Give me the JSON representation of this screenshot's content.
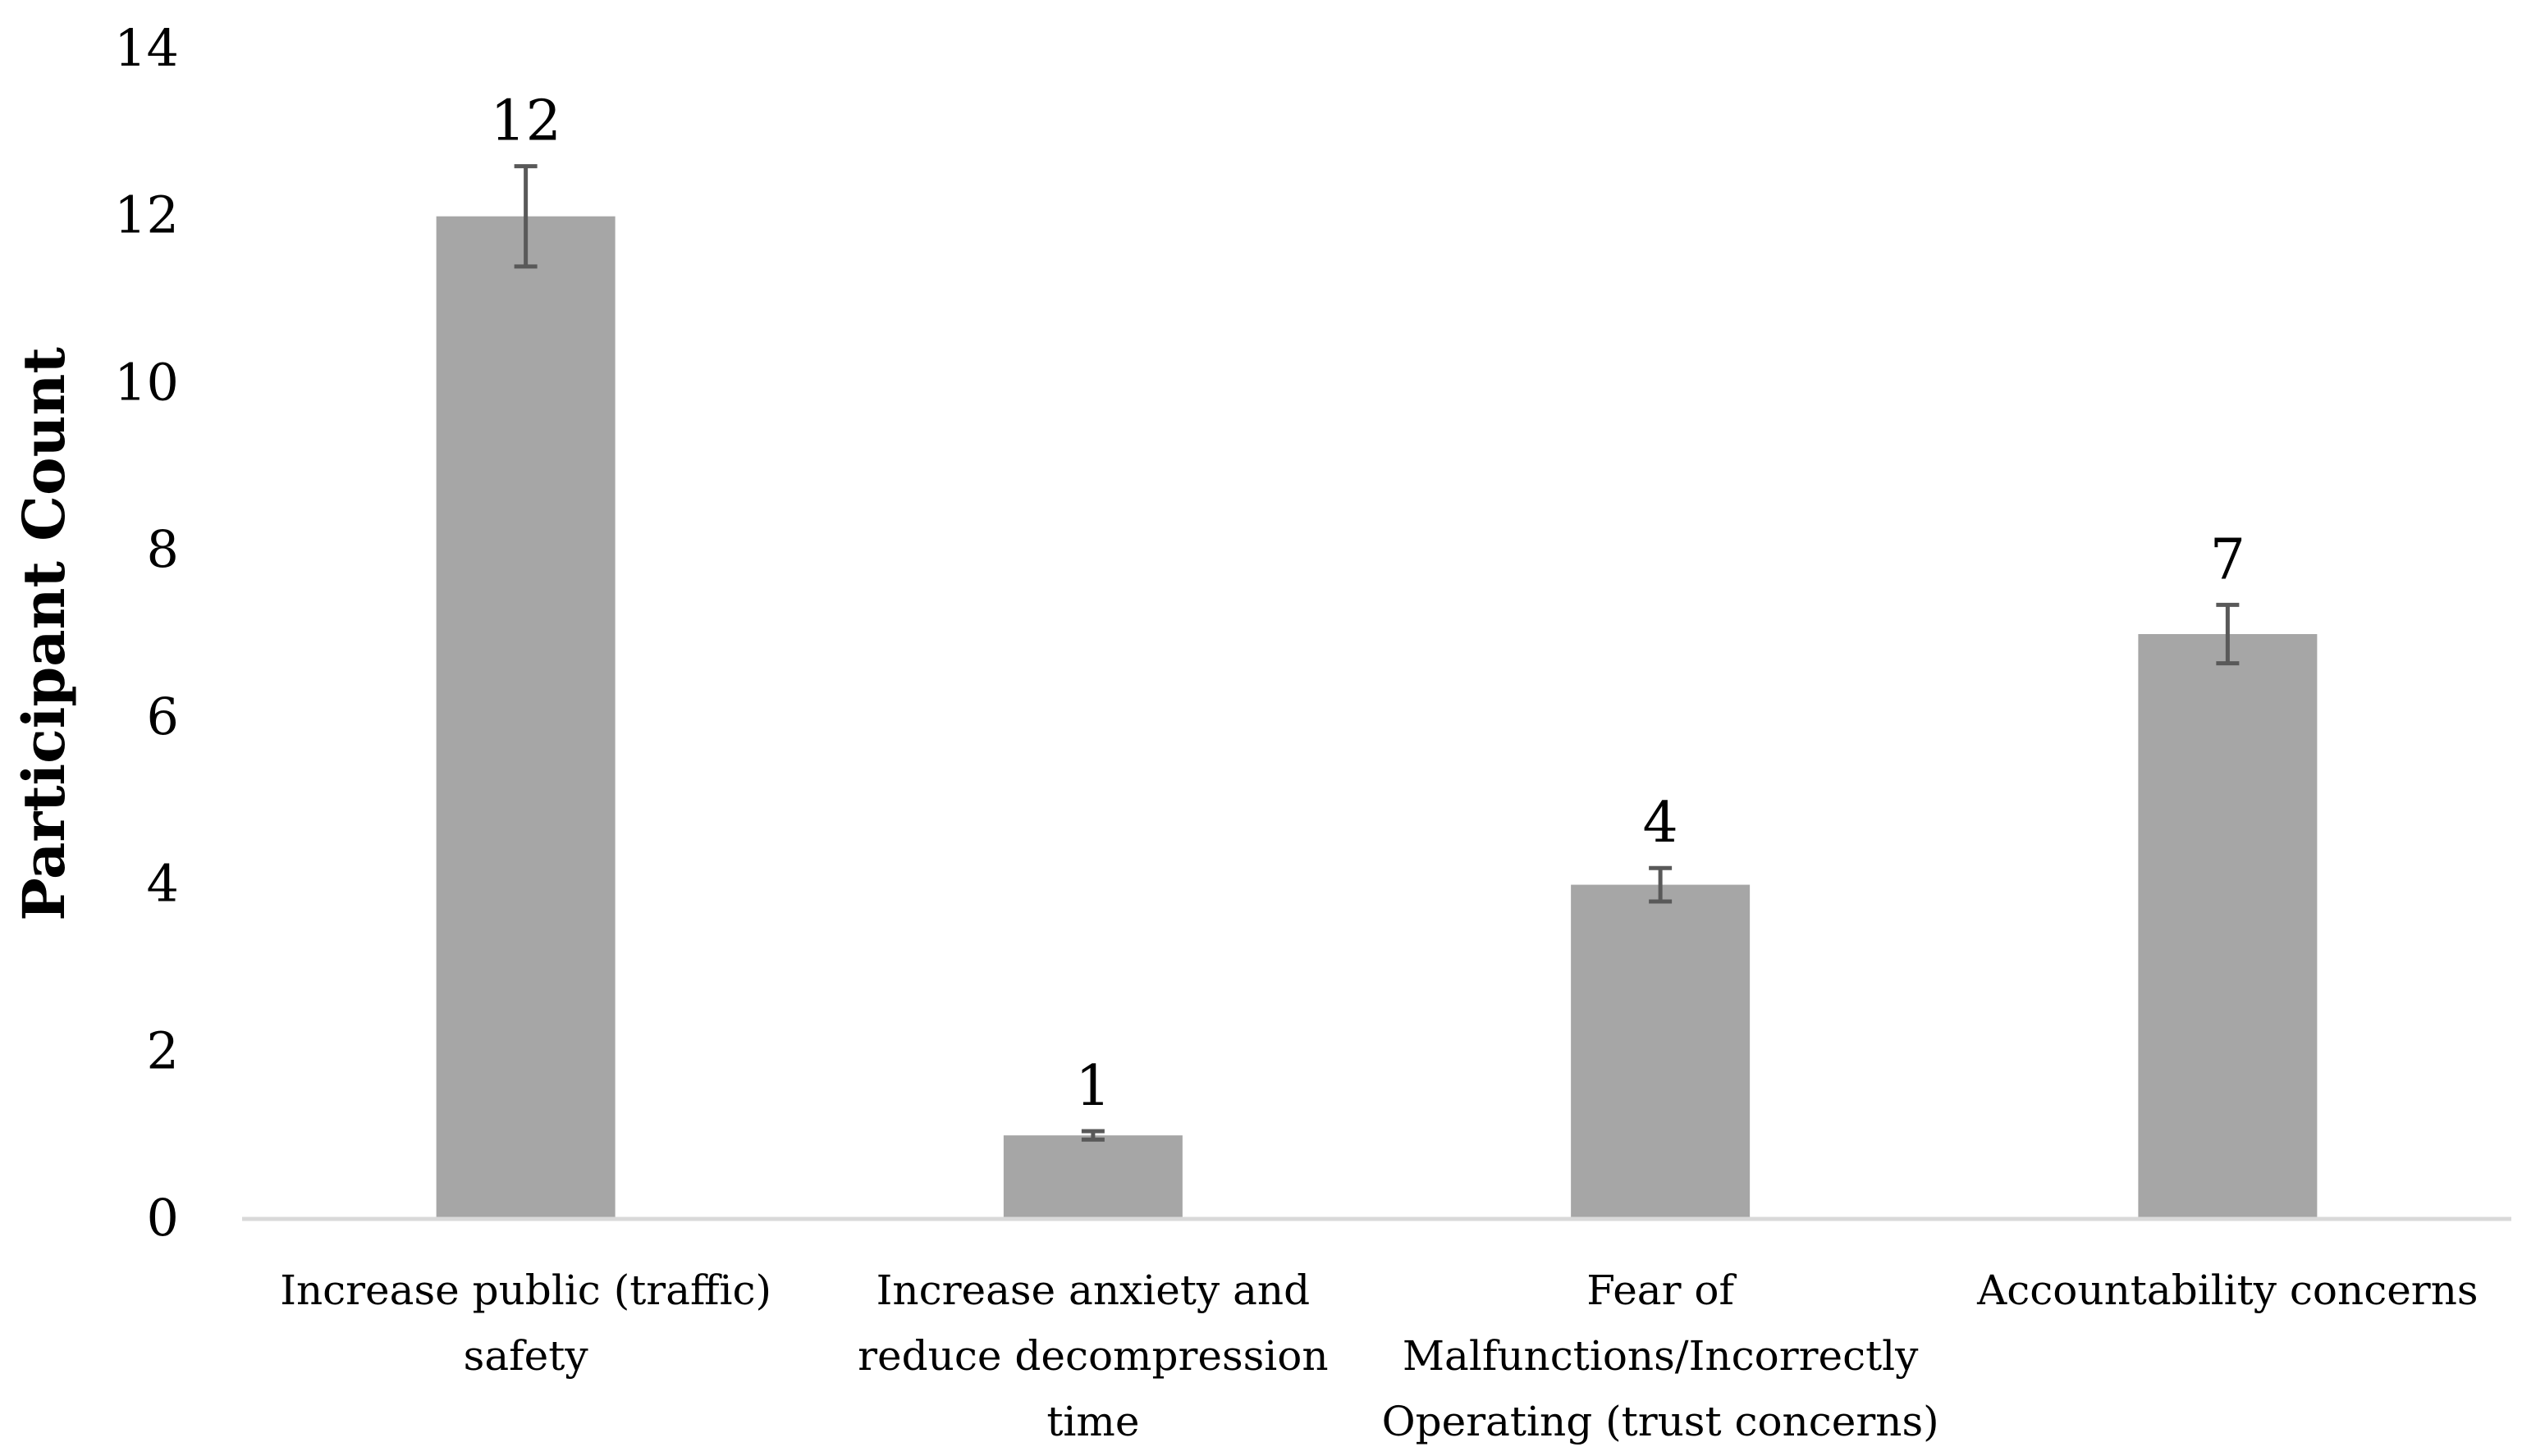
{
  "chart_data": {
    "type": "bar",
    "title": "",
    "xlabel": "",
    "ylabel": "Participant Count",
    "ylim": [
      0,
      14
    ],
    "yticks": [
      0,
      2,
      4,
      6,
      8,
      10,
      12,
      14
    ],
    "grid": false,
    "legend": "none",
    "categories": [
      [
        "Increase public (traffic)",
        "safety"
      ],
      [
        "Increase anxiety and",
        "reduce decompression",
        "time"
      ],
      [
        "Fear of",
        "Malfunctions/Incorrectly",
        "Operating (trust concerns)"
      ],
      [
        "Accountability concerns"
      ]
    ],
    "values": [
      12,
      1,
      4,
      7
    ],
    "data_labels": [
      "12",
      "1",
      "4",
      "7"
    ],
    "error_bars": [
      0.6,
      0.05,
      0.2,
      0.35
    ],
    "colors": {
      "bar": "#a6a6a6",
      "error_bar": "#595959",
      "axis": "#d9d9d9"
    }
  }
}
